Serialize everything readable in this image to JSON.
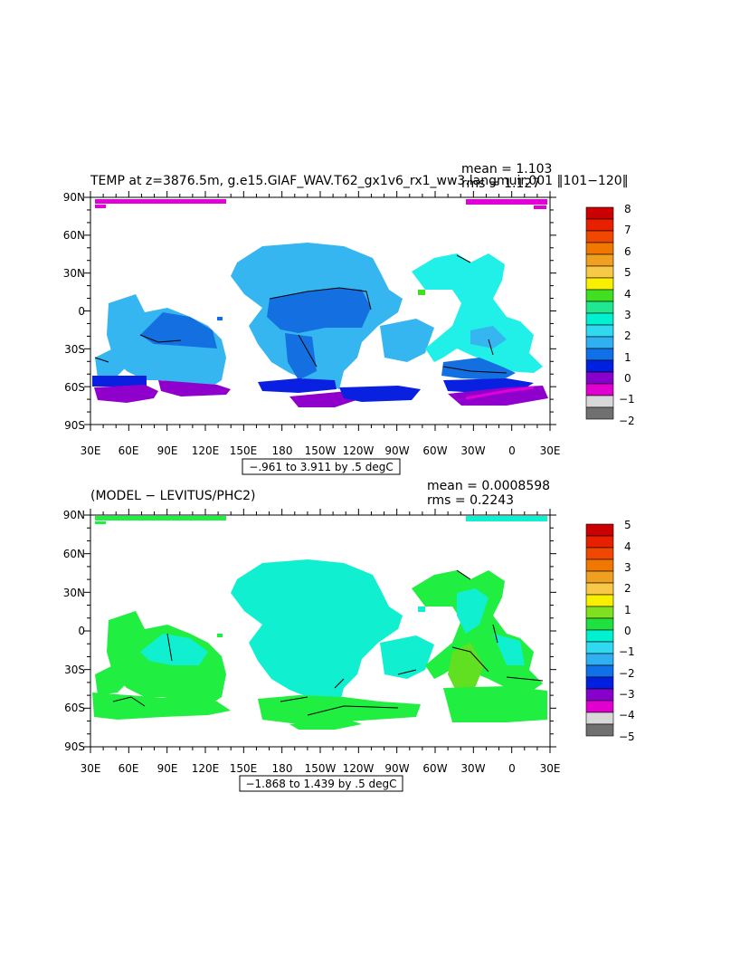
{
  "panels": [
    {
      "title": "TEMP at z=3876.5m, g.e15.GIAF_WAV.T62_gx1v6_rx1_ww3.langmuir.001 ‖101−120‖",
      "mean_label": "mean = 1.103",
      "rms_label": "rms = 1.127",
      "contour_label": "−.961 to 3.911 by .5 degC",
      "lat_ticks": [
        "90N",
        "60N",
        "30N",
        "0",
        "30S",
        "60S",
        "90S"
      ],
      "lon_ticks": [
        "30E",
        "60E",
        "90E",
        "120E",
        "150E",
        "180",
        "150W",
        "120W",
        "90W",
        "60W",
        "30W",
        "0",
        "30E"
      ],
      "colorbar_labels": [
        "8",
        "7",
        "6",
        "5",
        "4",
        "3",
        "2",
        "1",
        "0",
        "−1",
        "−2"
      ],
      "colorbar_colors": [
        "#cc0000",
        "#e82000",
        "#f04800",
        "#f07800",
        "#f0a020",
        "#f8c848",
        "#f8f000",
        "#40e020",
        "#20e890",
        "#00f0d0",
        "#30d8f0",
        "#30b0f0",
        "#1070e8",
        "#0020e0",
        "#8800cc",
        "#e000d0",
        "#d8d8d8",
        "#707070"
      ]
    },
    {
      "title": "(MODEL − LEVITUS/PHC2)",
      "mean_label": "mean = 0.0008598",
      "rms_label": "rms = 0.2243",
      "contour_label": "−1.868 to 1.439 by .5 degC",
      "lat_ticks": [
        "90N",
        "60N",
        "30N",
        "0",
        "30S",
        "60S",
        "90S"
      ],
      "lon_ticks": [
        "30E",
        "60E",
        "90E",
        "120E",
        "150E",
        "180",
        "150W",
        "120W",
        "90W",
        "60W",
        "30W",
        "0",
        "30E"
      ],
      "colorbar_labels": [
        "5",
        "4",
        "3",
        "2",
        "1",
        "0",
        "−1",
        "−2",
        "−3",
        "−4",
        "−5"
      ],
      "colorbar_colors": [
        "#cc0000",
        "#e82000",
        "#f04800",
        "#f07800",
        "#f0a020",
        "#f8c848",
        "#f8f000",
        "#80e020",
        "#20e040",
        "#00f0d0",
        "#30d8f0",
        "#30b0f0",
        "#1070e8",
        "#0020e0",
        "#8800cc",
        "#e000d0",
        "#d8d8d8",
        "#707070"
      ]
    }
  ],
  "colors": {
    "deep_blue": "#0a20e0",
    "mid_blue": "#1470e0",
    "light_blue": "#36b6f0",
    "cyan": "#20f0e8",
    "purple": "#9000cc",
    "magenta": "#e000d8",
    "green": "#20ee40",
    "bright_green": "#60e020",
    "aqua": "#10f0d0"
  }
}
